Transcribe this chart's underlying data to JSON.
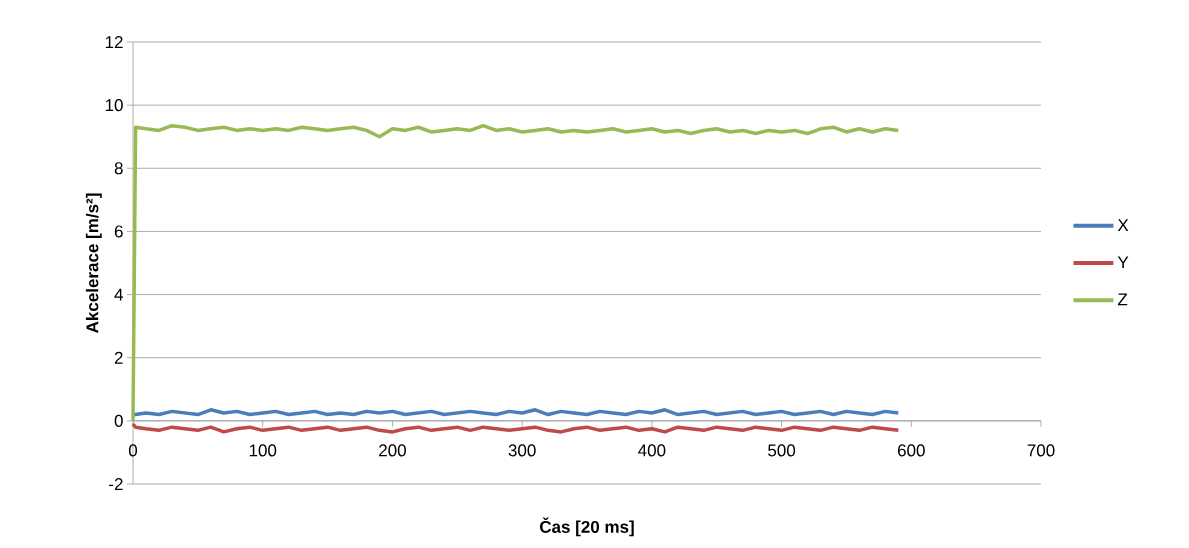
{
  "chart_data": {
    "type": "line",
    "xlabel": "Čas [20 ms]",
    "ylabel": "Akcelerace [m/s²]",
    "x": [
      0,
      2,
      10,
      20,
      30,
      40,
      50,
      60,
      70,
      80,
      90,
      100,
      110,
      120,
      130,
      140,
      150,
      160,
      170,
      180,
      190,
      200,
      210,
      220,
      230,
      240,
      250,
      260,
      270,
      280,
      290,
      300,
      310,
      320,
      330,
      340,
      350,
      360,
      370,
      380,
      390,
      400,
      410,
      420,
      430,
      440,
      450,
      460,
      470,
      480,
      490,
      500,
      510,
      520,
      530,
      540,
      550,
      560,
      570,
      580,
      590
    ],
    "series": [
      {
        "name": "X",
        "color": "#4a7ebb",
        "values": [
          0.2,
          0.2,
          0.25,
          0.2,
          0.3,
          0.25,
          0.2,
          0.35,
          0.25,
          0.3,
          0.2,
          0.25,
          0.3,
          0.2,
          0.25,
          0.3,
          0.2,
          0.25,
          0.2,
          0.3,
          0.25,
          0.3,
          0.2,
          0.25,
          0.3,
          0.2,
          0.25,
          0.3,
          0.25,
          0.2,
          0.3,
          0.25,
          0.35,
          0.2,
          0.3,
          0.25,
          0.2,
          0.3,
          0.25,
          0.2,
          0.3,
          0.25,
          0.35,
          0.2,
          0.25,
          0.3,
          0.2,
          0.25,
          0.3,
          0.2,
          0.25,
          0.3,
          0.2,
          0.25,
          0.3,
          0.2,
          0.3,
          0.25,
          0.2,
          0.3,
          0.25
        ]
      },
      {
        "name": "Y",
        "color": "#be4b48",
        "values": [
          -0.1,
          -0.2,
          -0.25,
          -0.3,
          -0.2,
          -0.25,
          -0.3,
          -0.2,
          -0.35,
          -0.25,
          -0.2,
          -0.3,
          -0.25,
          -0.2,
          -0.3,
          -0.25,
          -0.2,
          -0.3,
          -0.25,
          -0.2,
          -0.3,
          -0.35,
          -0.25,
          -0.2,
          -0.3,
          -0.25,
          -0.2,
          -0.3,
          -0.2,
          -0.25,
          -0.3,
          -0.25,
          -0.2,
          -0.3,
          -0.35,
          -0.25,
          -0.2,
          -0.3,
          -0.25,
          -0.2,
          -0.3,
          -0.25,
          -0.35,
          -0.2,
          -0.25,
          -0.3,
          -0.2,
          -0.25,
          -0.3,
          -0.2,
          -0.25,
          -0.3,
          -0.2,
          -0.25,
          -0.3,
          -0.2,
          -0.25,
          -0.3,
          -0.2,
          -0.25,
          -0.3
        ]
      },
      {
        "name": "Z",
        "color": "#98b954",
        "values": [
          0,
          9.3,
          9.25,
          9.2,
          9.35,
          9.3,
          9.2,
          9.25,
          9.3,
          9.2,
          9.25,
          9.2,
          9.25,
          9.2,
          9.3,
          9.25,
          9.2,
          9.25,
          9.3,
          9.2,
          9.0,
          9.25,
          9.2,
          9.3,
          9.15,
          9.2,
          9.25,
          9.2,
          9.35,
          9.2,
          9.25,
          9.15,
          9.2,
          9.25,
          9.15,
          9.2,
          9.15,
          9.2,
          9.25,
          9.15,
          9.2,
          9.25,
          9.15,
          9.2,
          9.1,
          9.2,
          9.25,
          9.15,
          9.2,
          9.1,
          9.2,
          9.15,
          9.2,
          9.1,
          9.25,
          9.3,
          9.15,
          9.25,
          9.15,
          9.25,
          9.2
        ]
      }
    ],
    "xlim": [
      0,
      700
    ],
    "xticks": [
      0,
      100,
      200,
      300,
      400,
      500,
      600,
      700
    ],
    "ylim": [
      -2,
      12
    ],
    "yticks": [
      -2,
      0,
      2,
      4,
      6,
      8,
      10,
      12
    ],
    "grid": "y",
    "legend": "right",
    "marker": "none",
    "line_style": "solid"
  }
}
